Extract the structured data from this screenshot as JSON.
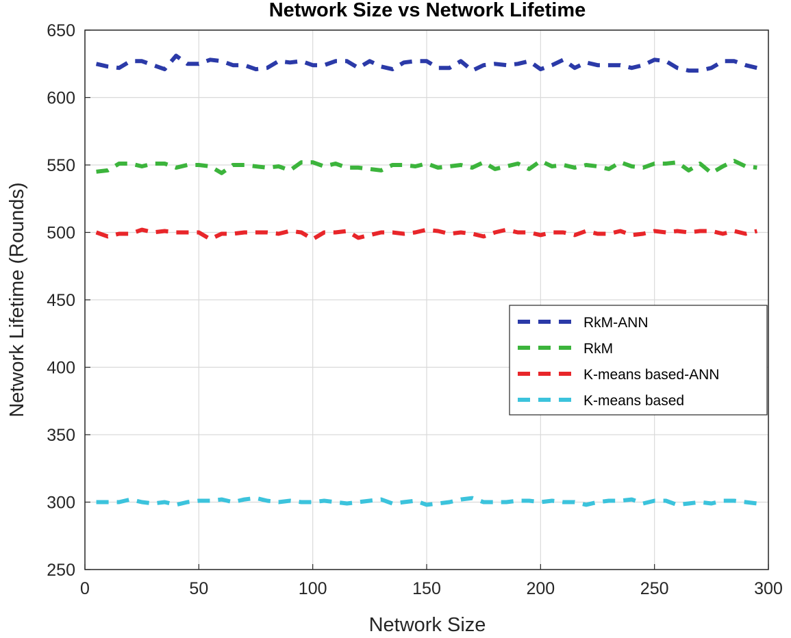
{
  "chart_data": {
    "type": "line",
    "title": "Network Size vs Network Lifetime",
    "xlabel": "Network Size",
    "ylabel": "Network Lifetime (Rounds)",
    "xlim": [
      0,
      300
    ],
    "ylim": [
      250,
      650
    ],
    "xticks": [
      "0",
      "50",
      "100",
      "150",
      "200",
      "250",
      "300"
    ],
    "yticks": [
      "250",
      "300",
      "350",
      "400",
      "450",
      "500",
      "550",
      "600",
      "650"
    ],
    "grid": true,
    "legend_position": "right",
    "x": [
      5,
      10,
      15,
      20,
      25,
      30,
      35,
      40,
      45,
      50,
      55,
      60,
      65,
      70,
      75,
      80,
      85,
      90,
      95,
      100,
      105,
      110,
      115,
      120,
      125,
      130,
      135,
      140,
      145,
      150,
      155,
      160,
      165,
      170,
      175,
      180,
      185,
      190,
      195,
      200,
      205,
      210,
      215,
      220,
      225,
      230,
      235,
      240,
      245,
      250,
      255,
      260,
      265,
      270,
      275,
      280,
      285,
      290,
      295
    ],
    "series": [
      {
        "name": "RkM-ANN",
        "color": "#2b3aa8",
        "values": [
          625,
          623,
          622,
          627,
          627,
          624,
          621,
          631,
          625,
          625,
          628,
          627,
          624,
          624,
          621,
          622,
          627,
          626,
          627,
          624,
          624,
          627,
          627,
          622,
          627,
          623,
          621,
          626,
          627,
          627,
          622,
          622,
          627,
          620,
          624,
          625,
          624,
          625,
          627,
          621,
          624,
          628,
          622,
          626,
          624,
          624,
          624,
          622,
          624,
          628,
          627,
          622,
          620,
          620,
          622,
          627,
          627,
          624,
          622
        ]
      },
      {
        "name": "RkM",
        "color": "#3cb43c",
        "values": [
          545,
          546,
          551,
          551,
          549,
          551,
          551,
          548,
          550,
          550,
          549,
          544,
          550,
          550,
          549,
          548,
          549,
          546,
          552,
          552,
          549,
          551,
          548,
          548,
          547,
          546,
          550,
          550,
          549,
          551,
          548,
          549,
          550,
          548,
          552,
          547,
          549,
          551,
          547,
          553,
          549,
          550,
          548,
          550,
          549,
          547,
          552,
          549,
          548,
          551,
          551,
          552,
          546,
          551,
          544,
          549,
          553,
          549,
          548
        ]
      },
      {
        "name": "K-means based-ANN",
        "color": "#e8262a",
        "values": [
          500,
          497,
          499,
          499,
          502,
          500,
          501,
          500,
          500,
          500,
          495,
          499,
          499,
          500,
          500,
          500,
          499,
          501,
          500,
          495,
          500,
          500,
          501,
          496,
          498,
          500,
          500,
          499,
          500,
          502,
          501,
          499,
          500,
          499,
          497,
          500,
          502,
          500,
          500,
          498,
          500,
          500,
          498,
          501,
          499,
          499,
          501,
          498,
          499,
          501,
          500,
          501,
          500,
          501,
          501,
          499,
          501,
          499,
          501
        ]
      },
      {
        "name": "K-means based",
        "color": "#3cc3dc",
        "values": [
          300,
          300,
          300,
          302,
          300,
          299,
          300,
          298,
          300,
          301,
          301,
          302,
          300,
          302,
          303,
          301,
          300,
          301,
          300,
          300,
          301,
          300,
          299,
          300,
          301,
          302,
          299,
          300,
          301,
          298,
          299,
          300,
          302,
          303,
          300,
          300,
          300,
          301,
          301,
          300,
          301,
          300,
          300,
          298,
          300,
          301,
          301,
          302,
          299,
          301,
          301,
          298,
          299,
          300,
          299,
          301,
          301,
          300,
          299
        ]
      }
    ]
  }
}
